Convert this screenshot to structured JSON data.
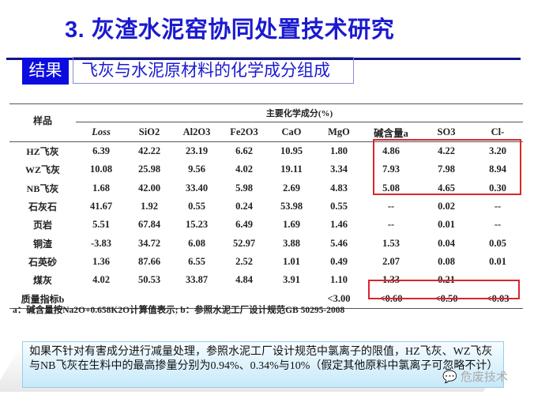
{
  "title": "3. 灰渣水泥窑协同处置技术研究",
  "tag": "结果",
  "subtitle": "飞灰与水泥原材料的化学成分组成",
  "table": {
    "sample_header": "样品",
    "group_header": "主要化学成分(%)",
    "columns": [
      "Loss",
      "SiO2",
      "Al2O3",
      "Fe2O3",
      "CaO",
      "MgO",
      "碱含量a",
      "SO3",
      "Cl-"
    ],
    "rows": [
      {
        "name": "HZ飞灰",
        "values": [
          "6.39",
          "42.22",
          "23.19",
          "6.62",
          "10.95",
          "1.80",
          "4.86",
          "4.22",
          "3.20"
        ]
      },
      {
        "name": "WZ飞灰",
        "values": [
          "10.08",
          "25.98",
          "9.56",
          "4.02",
          "19.11",
          "3.34",
          "7.93",
          "7.98",
          "8.94"
        ]
      },
      {
        "name": "NB飞灰",
        "values": [
          "1.68",
          "42.00",
          "33.40",
          "5.98",
          "2.69",
          "4.83",
          "5.08",
          "4.65",
          "0.30"
        ]
      },
      {
        "name": "石灰石",
        "values": [
          "41.67",
          "1.92",
          "0.55",
          "0.24",
          "53.98",
          "0.55",
          "--",
          "0.02",
          "--"
        ]
      },
      {
        "name": "页岩",
        "values": [
          "5.51",
          "67.84",
          "15.23",
          "6.49",
          "1.69",
          "1.46",
          "--",
          "0.01",
          "--"
        ]
      },
      {
        "name": "铜渣",
        "values": [
          "-3.83",
          "34.72",
          "6.08",
          "52.97",
          "3.88",
          "5.46",
          "1.53",
          "0.04",
          "0.05"
        ]
      },
      {
        "name": "石英砂",
        "values": [
          "1.36",
          "87.66",
          "6.55",
          "2.52",
          "1.01",
          "0.49",
          "2.07",
          "0.08",
          "0.01"
        ]
      },
      {
        "name": "煤灰",
        "values": [
          "4.02",
          "50.53",
          "33.87",
          "4.84",
          "3.91",
          "1.10",
          "1.33",
          "0.21",
          "--"
        ]
      },
      {
        "name": "质量指标b",
        "values": [
          "",
          "",
          "",
          "",
          "",
          "<3.00",
          "<0.60",
          "<0.50",
          "<0.03"
        ]
      }
    ]
  },
  "footnote": "a：碱含量按Na2O+0.658K2O计算值表示; b：参照水泥工厂设计规范GB 50295-2008",
  "callout": "如果不针对有害成分进行减量处理，参照水泥工厂设计规范中氯离子的限值，HZ飞灰、WZ飞灰与NB飞灰在生料中的最高掺量分别为0.94%、0.34%与10%（假定其他原料中氯离子可忽略不计）",
  "watermark": "危废技术",
  "colors": {
    "title": "#1a1ad0",
    "tag_bg": "#0c0ce0",
    "highlight": "#d9262a",
    "callout_bg": "#c7e9fa"
  }
}
